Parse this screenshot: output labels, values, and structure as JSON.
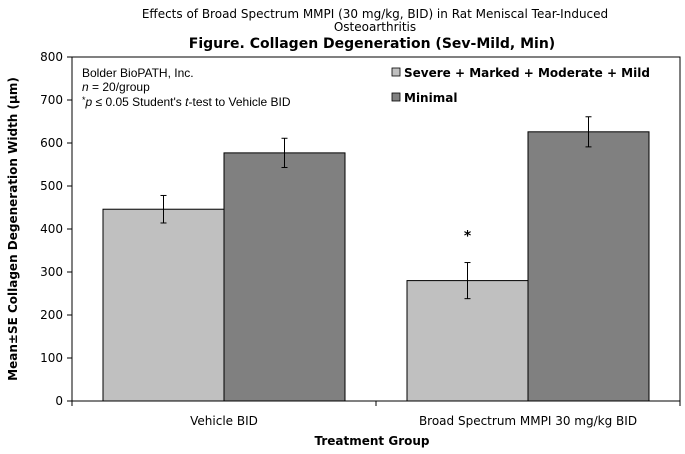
{
  "chart_data": {
    "type": "bar",
    "supertitle_line1": "Effects of Broad Spectrum MMPI (30 mg/kg, BID) in Rat Meniscal Tear-Induced",
    "supertitle_line2": "Osteoarthritis",
    "title": "Figure. Collagen Degeneration (Sev-Mild, Min)",
    "xlabel": "Treatment Group",
    "ylabel": "Mean±SE Collagen Degeneration Width (µm)",
    "ylim": [
      0,
      800
    ],
    "yticks": [
      0,
      100,
      200,
      300,
      400,
      500,
      600,
      700,
      800
    ],
    "grid": false,
    "legend_position": "top-right",
    "categories": [
      "Vehicle BID",
      "Broad Spectrum MMPI 30 mg/kg BID"
    ],
    "series": [
      {
        "name": "Severe + Marked + Moderate + Mild",
        "color": "#c0c0c0",
        "values": [
          446,
          280
        ],
        "errors": [
          32,
          42
        ]
      },
      {
        "name": "Minimal",
        "color": "#808080",
        "values": [
          577,
          626
        ],
        "errors": [
          34,
          35
        ]
      }
    ],
    "significance_marks": [
      {
        "series": 0,
        "category": 1,
        "label": "*"
      }
    ],
    "annotation": {
      "line1": "Bolder BioPATH, Inc.",
      "line2_italic": "n",
      "line2_rest": " = 20/group",
      "line3_star": "*",
      "line3_p": "p",
      "line3_mid": " ≤ 0.05 Student's ",
      "line3_t": "t",
      "line3_rest": "-test to Vehicle BID"
    }
  }
}
